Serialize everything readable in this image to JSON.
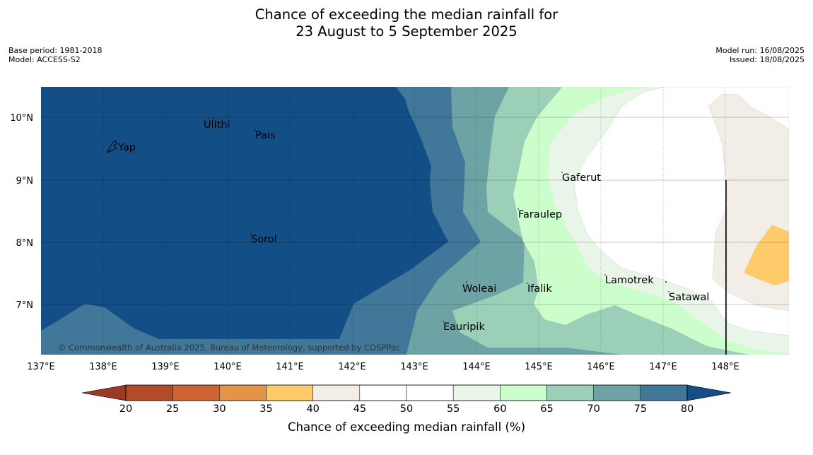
{
  "header": {
    "title_line1": "Chance of exceeding the median rainfall for",
    "title_line2": "23 August to 5 September 2025",
    "base_period": "Base period: 1981-2018",
    "model": "Model: ACCESS-S2",
    "model_run": "Model run: 16/08/2025",
    "issued": "Issued: 18/08/2025"
  },
  "map": {
    "copyright": "© Commonwealth of Australia 2025, Bureau of Meteorology, supported by COSPPac",
    "lon_ticks": [
      "137°E",
      "138°E",
      "139°E",
      "140°E",
      "141°E",
      "142°E",
      "143°E",
      "144°E",
      "145°E",
      "146°E",
      "147°E",
      "148°E"
    ],
    "lat_ticks": [
      "10°N",
      "9°N",
      "8°N",
      "7°N"
    ],
    "places": [
      {
        "name": "Ulithi"
      },
      {
        "name": "Pais"
      },
      {
        "name": "Yap"
      },
      {
        "name": "Gaferut"
      },
      {
        "name": "Faraulep"
      },
      {
        "name": "Sorol"
      },
      {
        "name": "Woleai"
      },
      {
        "name": "Ifalik"
      },
      {
        "name": "Lamotrek"
      },
      {
        "name": "Satawal"
      },
      {
        "name": "Eauripik"
      }
    ]
  },
  "legend": {
    "label": "Chance of exceeding median rainfall (%)",
    "ticks": [
      "20",
      "25",
      "30",
      "35",
      "40",
      "45",
      "50",
      "55",
      "60",
      "65",
      "70",
      "75",
      "80"
    ],
    "colors": {
      "below_20": "#9b3a22",
      "20_25": "#b34a2a",
      "25_30": "#cf6433",
      "30_35": "#e39446",
      "35_40": "#fecb6a",
      "40_45": "#f2ede7",
      "45_50": "#ffffff",
      "50_55": "#ffffff",
      "55_60": "#eaf5ea",
      "60_65": "#ccfecb",
      "65_70": "#9ccfb8",
      "70_75": "#6ea3a5",
      "75_80": "#417899",
      "above_80": "#144e87"
    }
  }
}
